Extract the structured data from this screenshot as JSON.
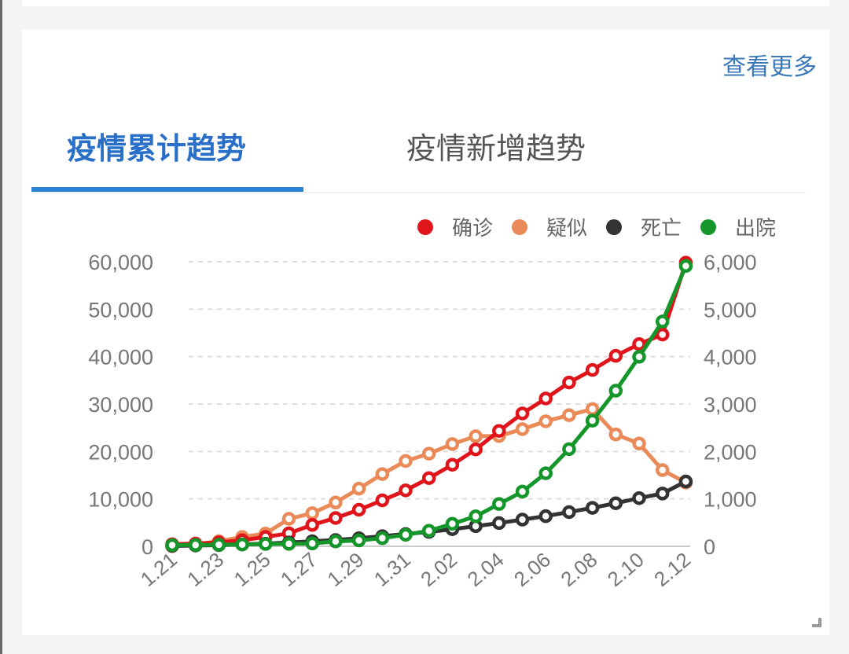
{
  "card": {
    "more_link": "查看更多",
    "tabs": [
      {
        "label": "疫情累计趋势",
        "active": true
      },
      {
        "label": "疫情新增趋势",
        "active": false
      }
    ],
    "accent_color": "#2a84d6"
  },
  "chart_data": {
    "type": "line",
    "title": "疫情累计趋势",
    "x": [
      "1.21",
      "1.22",
      "1.23",
      "1.24",
      "1.25",
      "1.26",
      "1.27",
      "1.28",
      "1.29",
      "1.30",
      "1.31",
      "2.01",
      "2.02",
      "2.03",
      "2.04",
      "2.05",
      "2.06",
      "2.07",
      "2.08",
      "2.09",
      "2.10",
      "2.11",
      "2.12"
    ],
    "x_tick_labels": [
      "1.21",
      "1.23",
      "1.25",
      "1.27",
      "1.29",
      "1.31",
      "2.02",
      "2.04",
      "2.06",
      "2.08",
      "2.10",
      "2.12"
    ],
    "y_left": {
      "ticks": [
        "0",
        "10,000",
        "20,000",
        "30,000",
        "40,000",
        "50,000",
        "60,000"
      ],
      "range": [
        0,
        60000
      ]
    },
    "y_right": {
      "ticks": [
        "0",
        "1,000",
        "2,000",
        "3,000",
        "4,000",
        "5,000",
        "6,000"
      ],
      "range": [
        0,
        6000
      ]
    },
    "grid": "dashed horizontal",
    "legend_position": "top-right",
    "series": [
      {
        "name": "确诊",
        "color": "#e0151b",
        "axis": "left",
        "values": [
          440,
          571,
          830,
          1287,
          1975,
          2744,
          4515,
          5974,
          7711,
          9692,
          11791,
          14380,
          17205,
          20438,
          24324,
          28018,
          31161,
          34546,
          37198,
          40171,
          42638,
          44653,
          59804
        ]
      },
      {
        "name": "疑似",
        "color": "#ea8a58",
        "axis": "left",
        "values": [
          37,
          393,
          1072,
          1965,
          2684,
          5794,
          6973,
          9239,
          12167,
          15238,
          17988,
          19544,
          21558,
          23214,
          23260,
          24702,
          26359,
          27657,
          28942,
          23589,
          21675,
          16067,
          13435
        ]
      },
      {
        "name": "死亡",
        "color": "#333333",
        "axis": "right",
        "values": [
          9,
          17,
          25,
          41,
          56,
          80,
          106,
          132,
          170,
          213,
          259,
          304,
          361,
          425,
          490,
          563,
          636,
          722,
          811,
          908,
          1016,
          1113,
          1367
        ]
      },
      {
        "name": "出院",
        "color": "#14962a",
        "axis": "right",
        "values": [
          25,
          28,
          34,
          38,
          49,
          51,
          60,
          103,
          124,
          171,
          243,
          328,
          475,
          632,
          892,
          1153,
          1540,
          2050,
          2649,
          3281,
          3996,
          4740,
          5911
        ]
      }
    ]
  }
}
